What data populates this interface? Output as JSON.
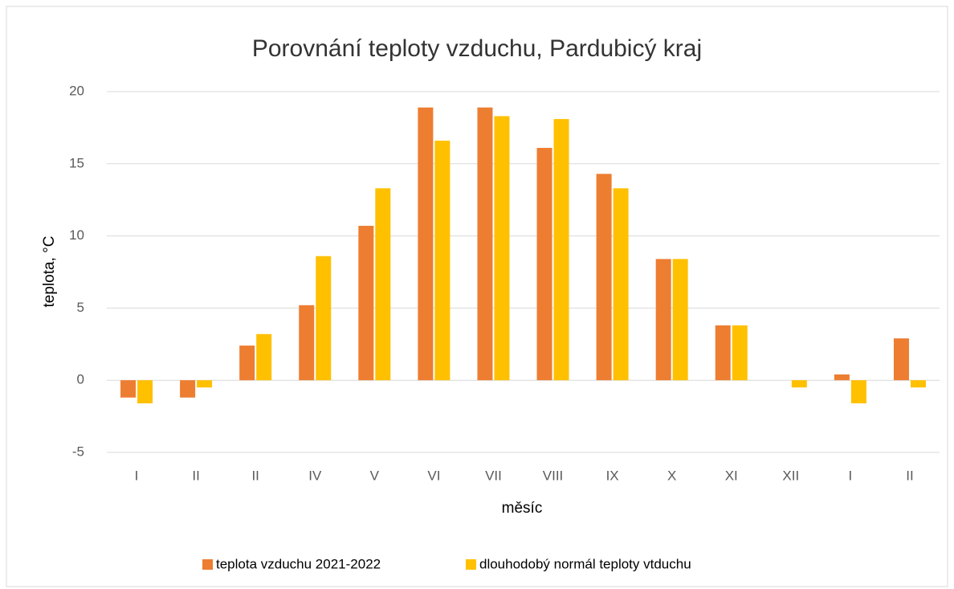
{
  "chart_data": {
    "type": "bar",
    "title": "Porovnání teploty vzduchu, Pardubicý kraj",
    "x_label": "měsíc",
    "y_label": "teplota, °C",
    "categories": [
      "I",
      "II",
      "II",
      "IV",
      "V",
      "VI",
      "VII",
      "VIII",
      "IX",
      "X",
      "XI",
      "XII",
      "I",
      "II"
    ],
    "series": [
      {
        "name": "teplota vzduchu 2021-2022",
        "color": "#ed7d31",
        "values": [
          -1.2,
          -1.2,
          2.4,
          5.2,
          10.7,
          18.9,
          18.9,
          16.1,
          14.3,
          8.4,
          3.8,
          0,
          0.4,
          2.9
        ]
      },
      {
        "name": "dlouhodobý normál teploty vtduchu",
        "color": "#ffc000",
        "values": [
          -1.6,
          -0.5,
          3.2,
          8.6,
          13.3,
          16.6,
          18.3,
          18.1,
          13.3,
          8.4,
          3.8,
          -0.5,
          -1.6,
          -0.5
        ]
      }
    ],
    "ylim": [
      -5,
      20
    ],
    "yticks": [
      -5,
      0,
      5,
      10,
      15,
      20
    ],
    "grid": true,
    "legend": "bottom"
  }
}
